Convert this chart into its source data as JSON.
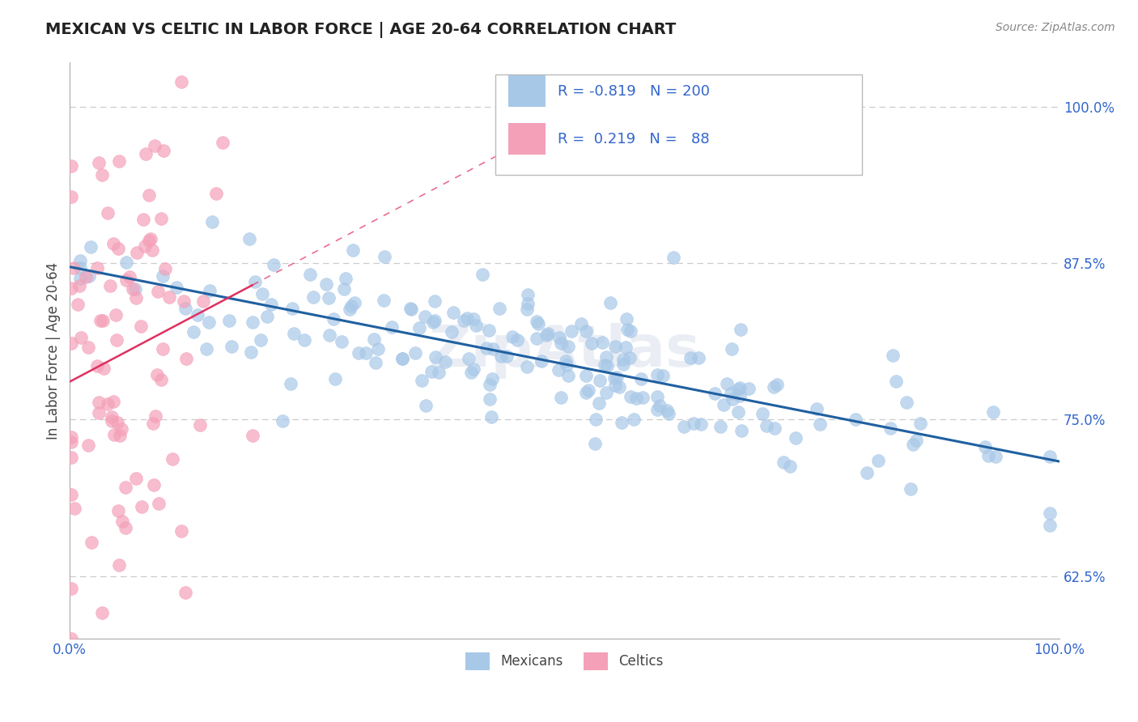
{
  "title": "MEXICAN VS CELTIC IN LABOR FORCE | AGE 20-64 CORRELATION CHART",
  "ylabel": "In Labor Force | Age 20-64",
  "source": "Source: ZipAtlas.com",
  "blue_color": "#a8c8e8",
  "pink_color": "#f4a0b8",
  "blue_line_color": "#2060a0",
  "pink_line_color": "#e03060",
  "R_blue": -0.819,
  "N_blue": 200,
  "R_pink": 0.219,
  "N_pink": 88,
  "xmin": 0.0,
  "xmax": 1.0,
  "ymin": 0.575,
  "ymax": 1.035,
  "yticks": [
    0.625,
    0.75,
    0.875,
    1.0
  ],
  "ytick_labels": [
    "62.5%",
    "75.0%",
    "87.5%",
    "100.0%"
  ],
  "xtick_labels": [
    "0.0%",
    "100.0%"
  ],
  "background_color": "#ffffff",
  "grid_color": "#cccccc",
  "title_fontsize": 14,
  "axis_label_fontsize": 12,
  "tick_fontsize": 12,
  "source_fontsize": 10,
  "legend_fontsize": 12,
  "r_text_color": "#3366cc",
  "n_text_color": "#3366cc",
  "watermark_color": "#dde4ee",
  "seed_blue": 42,
  "seed_pink": 99
}
